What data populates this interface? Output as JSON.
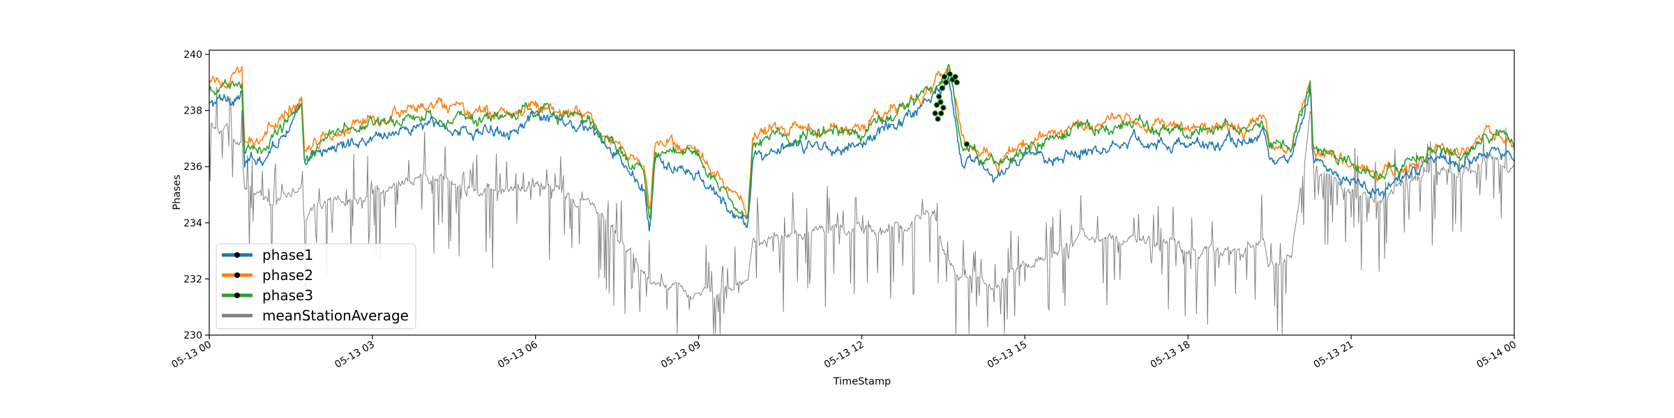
{
  "chart_data": {
    "type": "line",
    "title": "",
    "xlabel": "TimeStamp",
    "ylabel": "Phases",
    "xlim": [
      "05-13 00:00",
      "05-14 00:00"
    ],
    "ylim": [
      230,
      240.15
    ],
    "x_ticks": [
      "05-13 00",
      "05-13 03",
      "05-13 06",
      "05-13 09",
      "05-13 12",
      "05-13 15",
      "05-13 18",
      "05-13 21",
      "05-14 00"
    ],
    "y_ticks": [
      230,
      232,
      234,
      236,
      238,
      240
    ],
    "legend_position": "lower-left",
    "grid": false,
    "x_unit": "hours since 05-13 00:00",
    "series": [
      {
        "name": "phase1",
        "color": "#1f77b4",
        "marker": "black dots (only at high-voltage excursion near 05-13 13:30)",
        "x": [
          0,
          0.6,
          0.65,
          1,
          1.7,
          1.75,
          2,
          3,
          4,
          5,
          6,
          7,
          8,
          8.1,
          8.2,
          9,
          9.9,
          10,
          11,
          12,
          12.8,
          13.3,
          13.6,
          13.85,
          13.9,
          14.5,
          15,
          16,
          17,
          18,
          19,
          19.4,
          19.5,
          19.9,
          20.25,
          20.3,
          21,
          21.5,
          22,
          22.7,
          23,
          23.5,
          24
        ],
        "y": [
          238.2,
          238.6,
          236.0,
          236.4,
          238.0,
          235.9,
          236.5,
          237.1,
          237.5,
          237.2,
          237.7,
          237.3,
          235.2,
          233.5,
          236.2,
          235.6,
          233.8,
          236.4,
          236.7,
          236.8,
          237.8,
          238.5,
          239.3,
          236.3,
          236.2,
          235.7,
          236.2,
          236.6,
          237.0,
          236.7,
          236.9,
          237.2,
          236.1,
          236.3,
          238.9,
          236.1,
          235.5,
          235.1,
          235.6,
          236.3,
          236.0,
          236.8,
          236.3
        ]
      },
      {
        "name": "phase2",
        "color": "#ff7f0e",
        "marker": "black dots (only at high-voltage excursion near 05-13 13:30)",
        "x": [
          0,
          0.6,
          0.65,
          1,
          1.7,
          1.75,
          2,
          3,
          4,
          5,
          6,
          7,
          8,
          8.1,
          8.2,
          9,
          9.9,
          10,
          11,
          12,
          12.8,
          13.3,
          13.6,
          13.85,
          13.9,
          14.5,
          15,
          16,
          17,
          18,
          19,
          19.4,
          19.5,
          19.9,
          20.25,
          20.3,
          21,
          21.5,
          22,
          22.7,
          23,
          23.5,
          24
        ],
        "y": [
          238.9,
          239.3,
          236.7,
          237.0,
          238.5,
          236.6,
          237.1,
          237.8,
          238.1,
          237.8,
          238.2,
          237.8,
          235.9,
          234.1,
          236.9,
          236.4,
          234.5,
          237.3,
          237.3,
          237.3,
          238.3,
          238.8,
          239.6,
          236.9,
          236.8,
          236.3,
          236.9,
          237.5,
          237.7,
          237.3,
          237.4,
          237.8,
          236.9,
          236.8,
          239.2,
          236.7,
          236.2,
          235.7,
          236.1,
          236.8,
          236.5,
          237.3,
          236.9
        ]
      },
      {
        "name": "phase3",
        "color": "#2ca02c",
        "marker": "black dots (only at high-voltage excursion near 05-13 13:30)",
        "x": [
          0,
          0.6,
          0.65,
          1,
          1.7,
          1.75,
          2,
          3,
          4,
          5,
          6,
          7,
          8,
          8.1,
          8.2,
          9,
          9.9,
          10,
          11,
          12,
          12.8,
          13.3,
          13.6,
          13.85,
          13.9,
          14.5,
          15,
          16,
          17,
          18,
          19,
          19.4,
          19.5,
          19.9,
          20.25,
          20.3,
          21,
          21.5,
          22,
          22.7,
          23,
          23.5,
          24
        ],
        "y": [
          238.6,
          239.1,
          236.4,
          236.8,
          238.3,
          236.3,
          236.9,
          237.6,
          237.9,
          237.6,
          238.0,
          237.6,
          235.7,
          233.9,
          236.7,
          236.3,
          234.2,
          237.0,
          237.2,
          237.1,
          238.2,
          238.7,
          239.5,
          236.7,
          236.6,
          236.1,
          236.7,
          237.3,
          237.5,
          237.3,
          237.4,
          237.6,
          236.6,
          236.6,
          239.1,
          236.6,
          236.1,
          235.6,
          236.0,
          236.8,
          236.4,
          237.2,
          236.8
        ]
      },
      {
        "name": "meanStationAverage",
        "color": "#808080",
        "marker": "none",
        "x": [
          0,
          0.6,
          0.65,
          1,
          1.7,
          1.75,
          2,
          3,
          4,
          5,
          6,
          7,
          8,
          8.1,
          8.2,
          9,
          9.9,
          10,
          11,
          12,
          12.8,
          13.3,
          13.6,
          13.85,
          13.9,
          14.5,
          15,
          16,
          17,
          18,
          19,
          19.4,
          19.5,
          19.9,
          20.25,
          20.3,
          21,
          21.5,
          22,
          22.7,
          23,
          23.5,
          24
        ],
        "y": [
          237.5,
          237.0,
          235.5,
          234.8,
          235.3,
          234.0,
          234.8,
          235.1,
          235.7,
          235.0,
          235.4,
          234.8,
          232.3,
          232.0,
          232.0,
          231.3,
          232.0,
          233.2,
          233.8,
          233.6,
          233.8,
          234.5,
          232.5,
          232.0,
          232.0,
          231.8,
          232.5,
          233.2,
          233.5,
          233.0,
          232.8,
          233.5,
          232.4,
          232.6,
          238.0,
          236.0,
          235.0,
          234.8,
          235.3,
          236.0,
          235.8,
          236.3,
          236.1
        ]
      }
    ]
  }
}
